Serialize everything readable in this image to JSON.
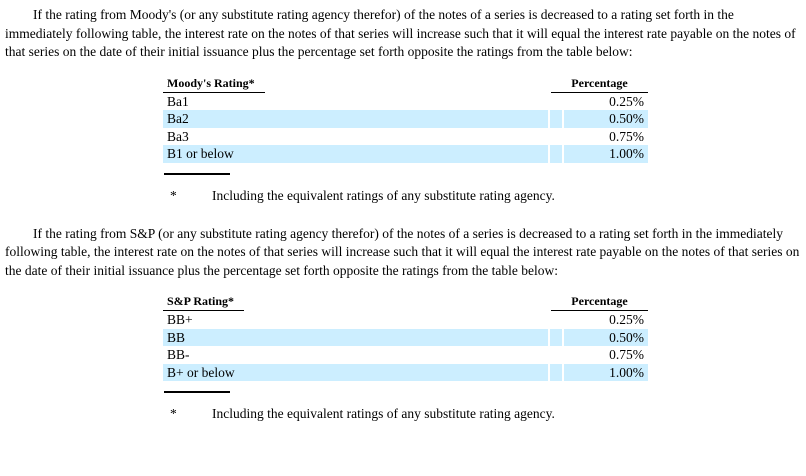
{
  "colors": {
    "row_highlight": "#cceeff",
    "text": "#000000",
    "background": "#ffffff"
  },
  "paragraphs": {
    "moodys_intro": "If the rating from Moody's (or any substitute rating agency therefor) of the notes of a series is decreased to a rating set forth in the immediately following table, the interest rate on the notes of that series will increase such that it will equal the interest rate payable on the notes of that series on the date of their initial issuance plus the percentage set forth opposite the ratings from the table below:",
    "sp_intro": "If the rating from S&P (or any substitute rating agency therefor) of the notes of a series is decreased to a rating set forth in the immediately following table, the interest rate on the notes of that series will increase such that it will equal the interest rate payable on the notes of that series on the date of their initial issuance plus the percentage set forth opposite the ratings from the table below:"
  },
  "tables": [
    {
      "rating_header": "Moody's Rating*",
      "percentage_header": "Percentage",
      "rows": [
        {
          "rating": "Ba1",
          "percentage": "0.25%"
        },
        {
          "rating": "Ba2",
          "percentage": "0.50%"
        },
        {
          "rating": "Ba3",
          "percentage": "0.75%"
        },
        {
          "rating": "B1 or below",
          "percentage": "1.00%"
        }
      ]
    },
    {
      "rating_header": "S&P Rating*",
      "percentage_header": "Percentage",
      "rows": [
        {
          "rating": "BB+",
          "percentage": "0.25%"
        },
        {
          "rating": "BB",
          "percentage": "0.50%"
        },
        {
          "rating": "BB-",
          "percentage": "0.75%"
        },
        {
          "rating": "B+ or below",
          "percentage": "1.00%"
        }
      ]
    }
  ],
  "footnote": {
    "marker": "*",
    "text": "Including the equivalent ratings of any substitute rating agency."
  }
}
